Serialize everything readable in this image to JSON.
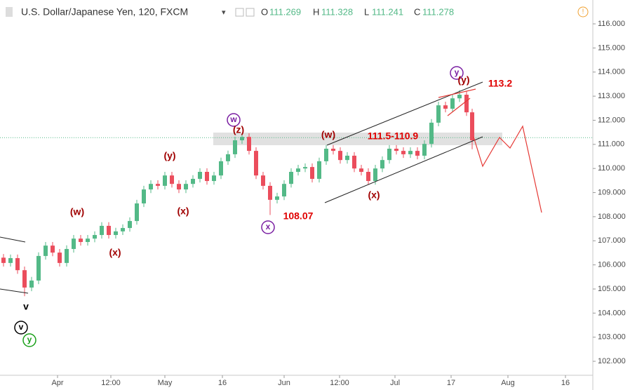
{
  "chart_data": {
    "type": "candlestick",
    "title": "U.S. Dollar/Japanese Yen, 120, FXCM",
    "ohlc": [
      {
        "label": "O",
        "value": 111.269
      },
      {
        "label": "H",
        "value": 111.328
      },
      {
        "label": "L",
        "value": 111.241
      },
      {
        "label": "C",
        "value": 111.278
      }
    ],
    "up_color": "#53b987",
    "down_color": "#eb4d5c",
    "xlim": [
      0,
      168.6
    ],
    "ylim": [
      101.42,
      116.99
    ],
    "xticks": [
      {
        "value": 16.4,
        "label": "Apr"
      },
      {
        "value": 31.6,
        "label": "12:00"
      },
      {
        "value": 47,
        "label": "May"
      },
      {
        "value": 63.4,
        "label": "16"
      },
      {
        "value": 81,
        "label": "Jun"
      },
      {
        "value": 96.8,
        "label": "12:00"
      },
      {
        "value": 112.6,
        "label": "Jul"
      },
      {
        "value": 128.6,
        "label": "17"
      },
      {
        "value": 144.8,
        "label": "Aug"
      },
      {
        "value": 161.2,
        "label": "16"
      }
    ],
    "yticks": [
      {
        "value": 116,
        "label": "116.000"
      },
      {
        "value": 115,
        "label": "115.000"
      },
      {
        "value": 114,
        "label": "114.000"
      },
      {
        "value": 113,
        "label": "113.000"
      },
      {
        "value": 112,
        "label": "112.000"
      },
      {
        "value": 111,
        "label": "111.000"
      },
      {
        "value": 110,
        "label": "110.000"
      },
      {
        "value": 109,
        "label": "109.000"
      },
      {
        "value": 108,
        "label": "108.000"
      },
      {
        "value": 107,
        "label": "107.000"
      },
      {
        "value": 106,
        "label": "106.000"
      },
      {
        "value": 105,
        "label": "105.000"
      },
      {
        "value": 104,
        "label": "104.000"
      },
      {
        "value": 103,
        "label": "103.000"
      },
      {
        "value": 102,
        "label": "102.000"
      }
    ],
    "x": [
      1,
      3,
      5,
      7,
      9,
      11,
      13,
      15,
      17,
      19,
      21,
      23,
      25,
      27,
      29,
      31,
      33,
      35,
      37,
      39,
      41,
      43,
      45,
      47,
      49,
      51,
      53,
      55,
      57,
      59,
      61,
      63,
      65,
      67,
      69,
      71,
      73,
      75,
      77,
      79,
      81,
      83,
      85,
      87,
      89,
      91,
      93,
      95,
      97,
      99,
      101,
      103,
      105,
      107,
      109,
      111,
      113,
      115,
      117,
      119,
      121,
      123,
      125,
      127,
      129,
      131,
      133,
      134.6
    ],
    "open": [
      106.3,
      106.08,
      106.28,
      105.78,
      105.06,
      105.35,
      106.37,
      106.8,
      106.51,
      106.08,
      106.66,
      107.09,
      106.95,
      107.09,
      107.24,
      107.62,
      107.24,
      107.39,
      107.53,
      107.82,
      108.55,
      109.13,
      109.36,
      109.28,
      109.71,
      109.36,
      109.13,
      109.36,
      109.57,
      109.86,
      109.48,
      109.71,
      110.3,
      110.59,
      111.17,
      111.31,
      110.73,
      109.71,
      109.28,
      108.7,
      108.84,
      109.36,
      109.86,
      110.0,
      110.06,
      109.57,
      110.3,
      110.82,
      110.73,
      110.35,
      110.53,
      110.0,
      109.86,
      109.48,
      110.0,
      110.35,
      110.82,
      110.73,
      110.59,
      110.73,
      110.53,
      111.02,
      111.9,
      112.62,
      112.48,
      112.91,
      113.06,
      112.33
    ],
    "high": [
      106.45,
      106.43,
      106.43,
      105.93,
      105.5,
      106.52,
      106.95,
      106.95,
      106.66,
      106.81,
      107.24,
      107.24,
      107.24,
      107.39,
      107.77,
      107.77,
      107.54,
      107.68,
      107.97,
      108.7,
      109.28,
      109.51,
      109.51,
      109.86,
      109.86,
      109.51,
      109.51,
      109.72,
      110.01,
      110.01,
      109.86,
      110.45,
      110.74,
      111.32,
      111.46,
      111.46,
      110.88,
      109.86,
      109.43,
      108.99,
      109.51,
      110.01,
      110.15,
      110.21,
      110.21,
      110.45,
      110.97,
      110.97,
      110.88,
      110.68,
      110.68,
      110.15,
      110.01,
      110.15,
      110.5,
      110.97,
      110.97,
      110.88,
      110.88,
      110.88,
      111.17,
      112.05,
      112.77,
      112.77,
      113.06,
      113.25,
      113.21,
      112.48
    ],
    "low": [
      105.93,
      105.93,
      105.63,
      104.7,
      104.91,
      105.2,
      106.22,
      106.36,
      105.93,
      105.93,
      106.51,
      106.8,
      106.8,
      106.94,
      107.09,
      107.09,
      107.09,
      107.24,
      107.38,
      107.67,
      108.4,
      108.98,
      109.13,
      109.13,
      109.21,
      108.98,
      108.98,
      109.21,
      109.42,
      109.33,
      109.33,
      109.56,
      110.15,
      110.44,
      111.02,
      110.58,
      109.56,
      109.13,
      108.07,
      108.55,
      108.69,
      109.21,
      109.71,
      109.85,
      109.42,
      109.42,
      110.15,
      110.58,
      110.2,
      110.2,
      109.85,
      109.71,
      109.33,
      109.33,
      109.85,
      110.2,
      110.58,
      110.44,
      110.44,
      110.38,
      110.38,
      110.87,
      111.75,
      112.33,
      112.33,
      112.76,
      112.18,
      110.8
    ],
    "close": [
      106.08,
      106.28,
      105.78,
      105.06,
      105.35,
      106.37,
      106.8,
      106.51,
      106.08,
      106.66,
      107.09,
      106.95,
      107.09,
      107.24,
      107.62,
      107.24,
      107.39,
      107.53,
      107.82,
      108.55,
      109.13,
      109.36,
      109.28,
      109.71,
      109.36,
      109.13,
      109.36,
      109.57,
      109.86,
      109.48,
      109.71,
      110.3,
      110.59,
      111.17,
      111.31,
      110.73,
      109.71,
      109.28,
      108.7,
      108.84,
      109.36,
      109.86,
      110.0,
      110.06,
      109.57,
      110.3,
      110.82,
      110.73,
      110.35,
      110.53,
      110.0,
      109.86,
      109.48,
      110.0,
      110.35,
      110.82,
      110.73,
      110.59,
      110.73,
      110.53,
      111.02,
      111.9,
      112.62,
      112.48,
      112.91,
      113.06,
      112.33,
      111.17
    ],
    "annotations": [
      {
        "text": "v",
        "color": "#000000",
        "circled": false
      },
      {
        "text": "v",
        "color": "#000000",
        "circled": true
      },
      {
        "text": "y",
        "color": "#1aa01a",
        "circled": true
      },
      {
        "text": "(w)",
        "color": "#a00000",
        "circled": false
      },
      {
        "text": "(x)",
        "color": "#a00000",
        "circled": false
      },
      {
        "text": "(y)",
        "color": "#a00000",
        "circled": false
      },
      {
        "text": "(x)",
        "color": "#a00000",
        "circled": false
      },
      {
        "text": "w",
        "color": "#7a1fa2",
        "circled": true
      },
      {
        "text": "(z)",
        "color": "#a00000",
        "circled": false
      },
      {
        "text": "x",
        "color": "#7a1fa2",
        "circled": true
      },
      {
        "text": "108.07",
        "color": "#e00000",
        "circled": false
      },
      {
        "text": "(w)",
        "color": "#a00000",
        "circled": false
      },
      {
        "text": "111.5-110.9",
        "color": "#e00000",
        "circled": false
      },
      {
        "text": "(x)",
        "color": "#a00000",
        "circled": false
      },
      {
        "text": "y",
        "color": "#7a1fa2",
        "circled": true
      },
      {
        "text": "(y)",
        "color": "#a00000",
        "circled": false
      },
      {
        "text": "113.2",
        "color": "#e00000",
        "circled": false
      }
    ]
  }
}
